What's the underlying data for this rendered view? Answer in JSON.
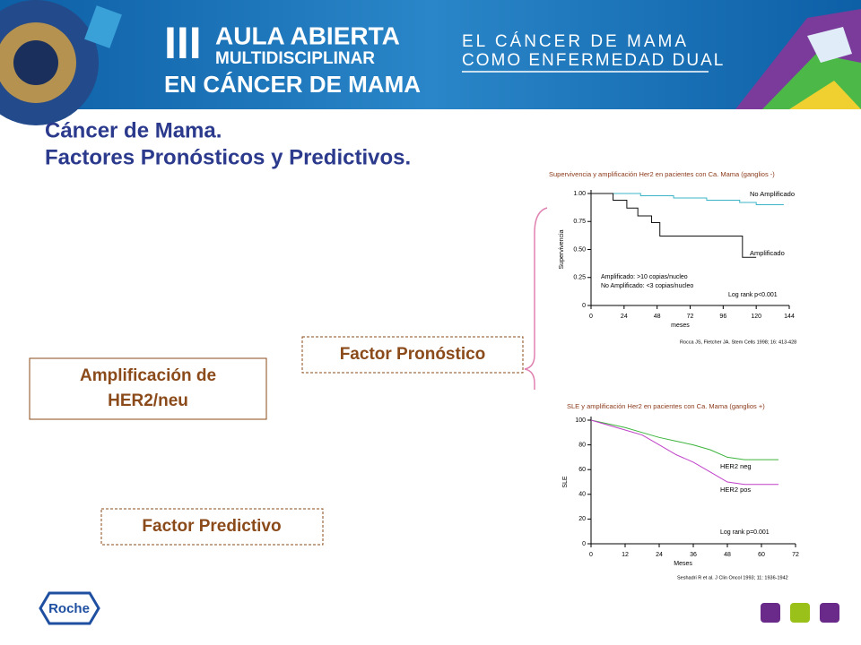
{
  "header": {
    "logo_number": "III",
    "logo_line1": "AULA ABIERTA",
    "logo_line2": "MULTIDISCIPLINAR",
    "logo_line3": "EN CÁNCER DE MAMA",
    "subtitle_line1": "EL CÁNCER DE MAMA",
    "subtitle_line2": "COMO ENFERMEDAD DUAL"
  },
  "title": {
    "line1": "Cáncer de Mama.",
    "line2": "Factores Pronósticos y Predictivos."
  },
  "boxes": {
    "main": {
      "line1": "Amplificación de",
      "line2": "HER2/neu"
    },
    "prognostic": "Factor Pronóstico",
    "predictive": "Factor Predictivo"
  },
  "footer": {
    "logo": "Roche"
  },
  "chart_data": [
    {
      "type": "line",
      "title": "Supervivencia y amplificación Her2 en pacientes con Ca. Mama (ganglios -)",
      "y_label": "Supervivencia",
      "x_label": "meses",
      "xlim": [
        0,
        144
      ],
      "xticks": [
        0,
        24,
        48,
        72,
        96,
        120,
        144
      ],
      "ylim": [
        0,
        1
      ],
      "yticks": [
        0,
        0.25,
        {
          "value": 0.5,
          "label": "0.50"
        },
        0.75,
        {
          "value": 1,
          "label": "1.00"
        }
      ],
      "series": [
        {
          "name": "No Amplificado",
          "color": "#3cb4c8",
          "x": [
            0,
            36,
            36,
            60,
            60,
            84,
            84,
            108,
            108,
            120,
            120,
            140
          ],
          "values": [
            1,
            1,
            0.98,
            0.98,
            0.96,
            0.96,
            0.94,
            0.94,
            0.92,
            0.92,
            0.9,
            0.9
          ]
        },
        {
          "name": "Amplificado",
          "color": "#111111",
          "x": [
            0,
            16,
            16,
            26,
            26,
            34,
            34,
            44,
            44,
            50,
            50,
            110,
            110,
            120
          ],
          "values": [
            1,
            1,
            0.94,
            0.94,
            0.87,
            0.87,
            0.8,
            0.8,
            0.74,
            0.74,
            0.62,
            0.62,
            0.43,
            0.43
          ]
        }
      ],
      "annotations": [
        "Amplificado: >10 copias/nucleo",
        "No Amplificado: <3 copias/nucleo",
        "Log rank p<0.001"
      ],
      "source": "Rocca JS, Fletcher JA. Stem Cells 1998; 16: 413-428"
    },
    {
      "type": "line",
      "title": "SLE y amplificación Her2 en pacientes con Ca. Mama (ganglios +)",
      "y_label": "SLE",
      "x_label": "Meses",
      "xlim": [
        0,
        72
      ],
      "xticks": [
        0,
        12,
        24,
        36,
        48,
        60,
        72
      ],
      "ylim": [
        0,
        100
      ],
      "yticks": [
        0,
        20,
        40,
        60,
        80,
        100
      ],
      "series": [
        {
          "name": "HER2 neg",
          "color": "#3cb43c",
          "x": [
            0,
            6,
            12,
            18,
            24,
            30,
            36,
            42,
            48,
            54,
            60,
            66
          ],
          "values": [
            100,
            97,
            94,
            90,
            86,
            83,
            80,
            76,
            70,
            68,
            68,
            68
          ]
        },
        {
          "name": "HER2 pos",
          "color": "#c040c8",
          "x": [
            0,
            6,
            12,
            18,
            24,
            30,
            36,
            42,
            48,
            54,
            60,
            66
          ],
          "values": [
            100,
            96,
            92,
            88,
            80,
            72,
            66,
            58,
            50,
            48,
            48,
            48
          ]
        }
      ],
      "annotations": [
        "Log rank p=0.001"
      ],
      "source": "Seshadri R et al. J Clin Oncol 1993; 11: 1936-1942"
    }
  ]
}
